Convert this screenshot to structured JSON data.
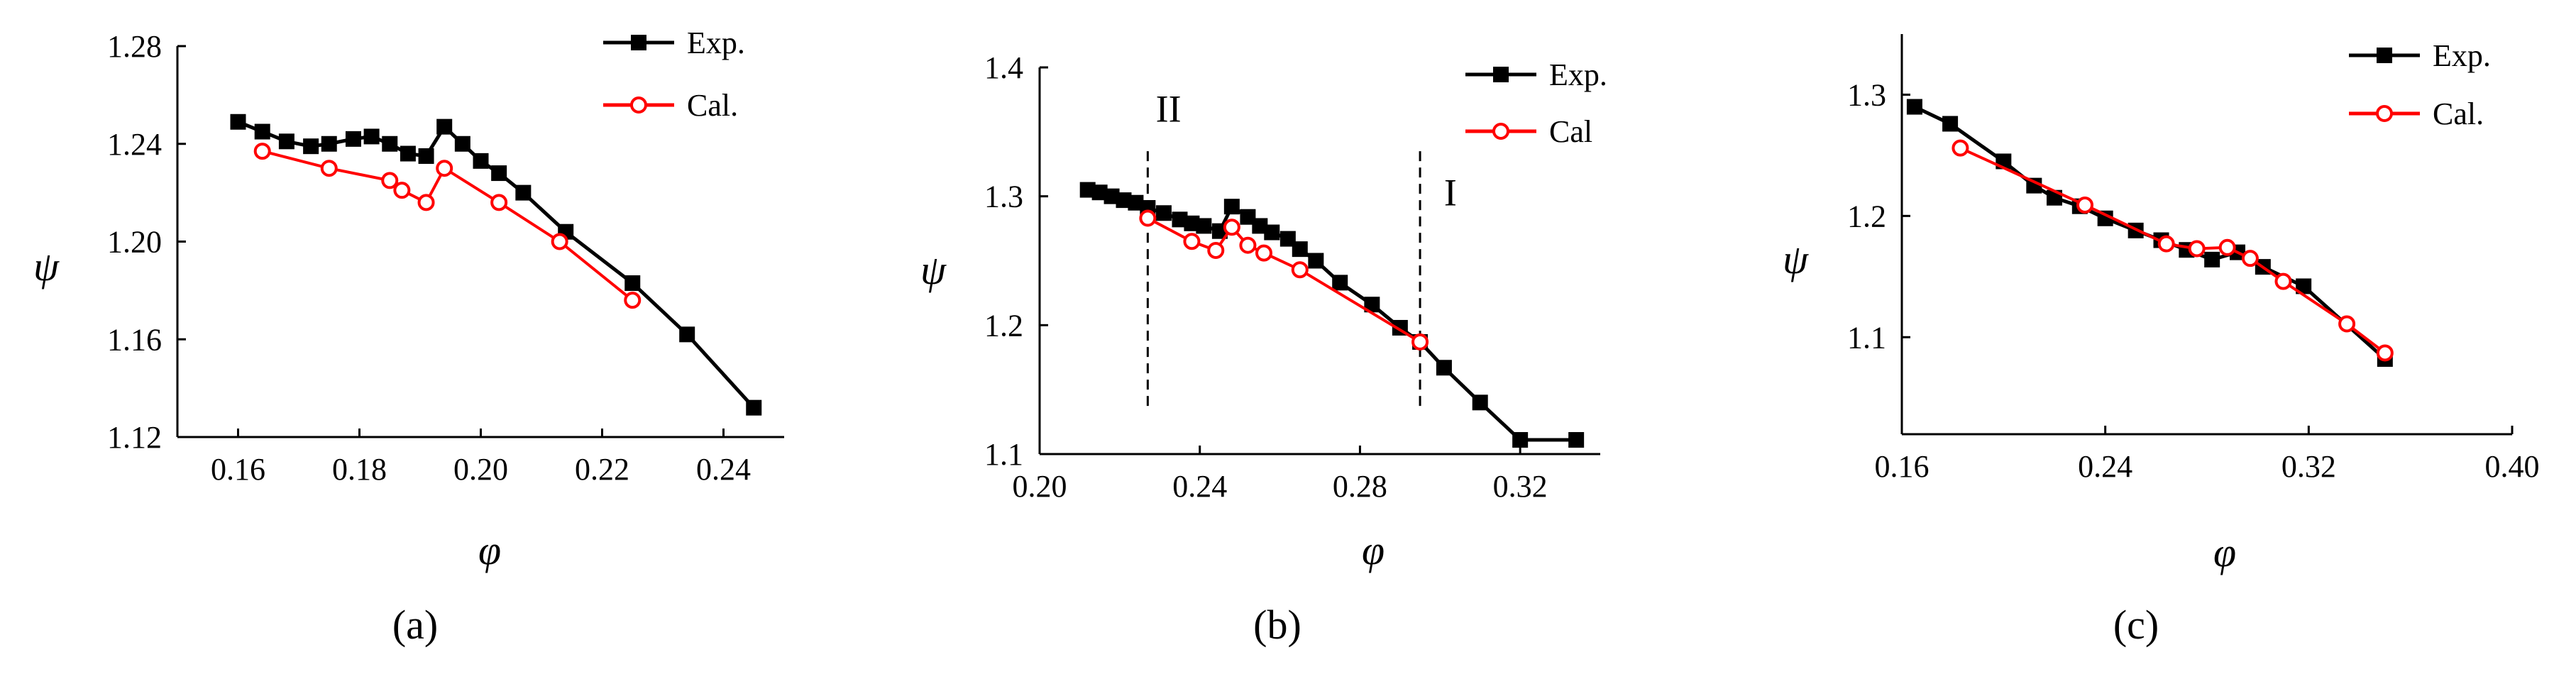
{
  "chart_data": [
    {
      "panel": "a",
      "type": "line",
      "caption": "(a)",
      "xlabel": "φ",
      "ylabel": "ψ",
      "xlim": [
        0.15,
        0.25
      ],
      "ylim": [
        1.12,
        1.28
      ],
      "xticks": [
        0.16,
        0.18,
        0.2,
        0.22,
        0.24
      ],
      "xtick_labels": [
        "0.16",
        "0.18",
        "0.20",
        "0.22",
        "0.24"
      ],
      "yticks": [
        1.12,
        1.16,
        1.2,
        1.24,
        1.28
      ],
      "ytick_labels": [
        "1.12",
        "1.16",
        "1.20",
        "1.24",
        "1.28"
      ],
      "legend_position": "top-right",
      "series": [
        {
          "name": "Exp.",
          "marker": "square",
          "color": "#000000",
          "x": [
            0.16,
            0.164,
            0.168,
            0.172,
            0.175,
            0.179,
            0.182,
            0.185,
            0.188,
            0.191,
            0.194,
            0.197,
            0.2,
            0.203,
            0.207,
            0.214,
            0.225,
            0.234,
            0.245
          ],
          "y": [
            1.249,
            1.245,
            1.241,
            1.239,
            1.24,
            1.242,
            1.243,
            1.24,
            1.236,
            1.235,
            1.247,
            1.24,
            1.233,
            1.228,
            1.22,
            1.204,
            1.183,
            1.162,
            1.132
          ]
        },
        {
          "name": "Cal.",
          "marker": "circle-open",
          "color": "#ff0000",
          "x": [
            0.164,
            0.175,
            0.185,
            0.187,
            0.191,
            0.194,
            0.203,
            0.213,
            0.225
          ],
          "y": [
            1.237,
            1.23,
            1.225,
            1.221,
            1.216,
            1.23,
            1.216,
            1.2,
            1.176
          ]
        }
      ]
    },
    {
      "panel": "b",
      "type": "line",
      "caption": "(b)",
      "xlabel": "φ",
      "ylabel": "ψ",
      "xlim": [
        0.2,
        0.34
      ],
      "ylim": [
        1.1,
        1.4
      ],
      "xticks": [
        0.2,
        0.24,
        0.28,
        0.32
      ],
      "xtick_labels": [
        "0.20",
        "0.24",
        "0.28",
        "0.32"
      ],
      "yticks": [
        1.1,
        1.2,
        1.3,
        1.4
      ],
      "ytick_labels": [
        "1.1",
        "1.2",
        "1.3",
        "1.4"
      ],
      "legend_position": "top-right",
      "annotations": [
        {
          "text": "II",
          "x": 0.229,
          "y": 1.358
        },
        {
          "text": "I",
          "x": 0.301,
          "y": 1.293
        }
      ],
      "vlines": [
        0.227,
        0.295
      ],
      "vline_range": [
        1.135,
        1.335
      ],
      "series": [
        {
          "name": "Exp.",
          "marker": "square",
          "color": "#000000",
          "x": [
            0.212,
            0.215,
            0.218,
            0.221,
            0.224,
            0.227,
            0.231,
            0.235,
            0.238,
            0.241,
            0.245,
            0.248,
            0.252,
            0.255,
            0.258,
            0.262,
            0.265,
            0.269,
            0.275,
            0.283,
            0.29,
            0.295,
            0.301,
            0.31,
            0.32,
            0.334
          ],
          "y": [
            1.305,
            1.303,
            1.3,
            1.297,
            1.295,
            1.291,
            1.287,
            1.282,
            1.279,
            1.277,
            1.273,
            1.292,
            1.284,
            1.277,
            1.272,
            1.267,
            1.259,
            1.25,
            1.233,
            1.216,
            1.198,
            1.187,
            1.167,
            1.14,
            1.111,
            1.111
          ]
        },
        {
          "name": "Cal",
          "marker": "circle-open",
          "color": "#ff0000",
          "x": [
            0.227,
            0.238,
            0.244,
            0.248,
            0.252,
            0.256,
            0.265,
            0.295
          ],
          "y": [
            1.283,
            1.265,
            1.258,
            1.276,
            1.262,
            1.256,
            1.243,
            1.187
          ]
        }
      ]
    },
    {
      "panel": "c",
      "type": "line",
      "caption": "(c)",
      "xlabel": "φ",
      "ylabel": "ψ",
      "xlim": [
        0.16,
        0.4
      ],
      "ylim": [
        1.02,
        1.35
      ],
      "xticks": [
        0.16,
        0.24,
        0.32,
        0.4
      ],
      "xtick_labels": [
        "0.16",
        "0.24",
        "0.32",
        "0.40"
      ],
      "yticks": [
        1.1,
        1.2,
        1.3
      ],
      "ytick_labels": [
        "1.1",
        "1.2",
        "1.3"
      ],
      "legend_position": "top-right",
      "series": [
        {
          "name": "Exp.",
          "marker": "square",
          "color": "#000000",
          "x": [
            0.165,
            0.179,
            0.2,
            0.212,
            0.22,
            0.23,
            0.24,
            0.252,
            0.262,
            0.272,
            0.282,
            0.292,
            0.302,
            0.318,
            0.35
          ],
          "y": [
            1.29,
            1.276,
            1.245,
            1.225,
            1.215,
            1.208,
            1.198,
            1.188,
            1.18,
            1.172,
            1.164,
            1.17,
            1.158,
            1.142,
            1.082
          ]
        },
        {
          "name": "Cal.",
          "marker": "circle-open",
          "color": "#ff0000",
          "x": [
            0.183,
            0.232,
            0.264,
            0.276,
            0.288,
            0.297,
            0.31,
            0.335,
            0.35
          ],
          "y": [
            1.256,
            1.209,
            1.177,
            1.173,
            1.174,
            1.165,
            1.146,
            1.111,
            1.087
          ]
        }
      ]
    }
  ]
}
